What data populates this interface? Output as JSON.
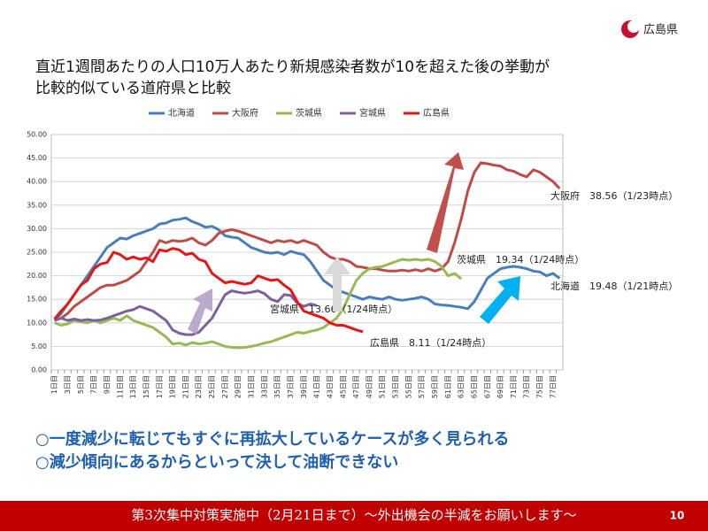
{
  "logo": "広島県",
  "title_lines": [
    "直近1週間あたりの人口10万人あたり新規感染者数が10を超えた後の挙動が",
    "比較的似ている道府県と比較"
  ],
  "bullets": [
    "○一度減少に転じてもすぐに再拡大しているケースが多く見られる",
    "○減少傾向にあるからといって決して油断できない"
  ],
  "footer": "第3次集中対策実施中（2月21日まで）～外出機会の半減をお願いします～",
  "page_number": "10",
  "chart_data": {
    "type": "line",
    "categories": [
      "1日目",
      null,
      "3日目",
      null,
      "5日目",
      null,
      "7日目",
      null,
      "9日目",
      null,
      "11日目",
      null,
      "13日目",
      null,
      "15日目",
      null,
      "17日目",
      null,
      "19日目",
      null,
      "21日目",
      null,
      "23日目",
      null,
      "25日目",
      null,
      "27日目",
      null,
      "29日目",
      null,
      "31日目",
      null,
      "33日目",
      null,
      "35日目",
      null,
      "37日目",
      null,
      "39日目",
      null,
      "41日目",
      null,
      "43日目",
      null,
      "45日目",
      null,
      "47日目",
      null,
      "49日目",
      null,
      "51日目",
      null,
      "53日目",
      null,
      "55日目",
      null,
      "57日目",
      null,
      "59日目",
      null,
      "61日目",
      null,
      "63日目",
      null,
      "65日目",
      null,
      "67日目",
      null,
      "69日目",
      null,
      "71日目",
      null,
      "73日目",
      null,
      "75日目",
      null,
      "77日目",
      null
    ],
    "ylim": [
      0,
      50
    ],
    "yticks": [
      {
        "value": 0,
        "label": "0.00"
      },
      {
        "value": 5,
        "label": "5.00"
      },
      {
        "value": 10,
        "label": "10.00"
      },
      {
        "value": 15,
        "label": "15.00"
      },
      {
        "value": 20,
        "label": "20.00"
      },
      {
        "value": 25,
        "label": "25.00"
      },
      {
        "value": 30,
        "label": "30.00"
      },
      {
        "value": 35,
        "label": "35.00"
      },
      {
        "value": 40,
        "label": "40.00"
      },
      {
        "value": 45,
        "label": "45.00"
      },
      {
        "value": 50,
        "label": "50.00"
      }
    ],
    "grid": true,
    "series": [
      {
        "name": "北海道",
        "color": "#4a7ebb",
        "values": [
          10.5,
          12,
          14,
          16,
          18,
          20,
          22,
          24,
          26,
          27,
          28,
          27.8,
          28.5,
          29,
          29.5,
          30,
          31,
          31.2,
          31.8,
          32,
          32.3,
          31.5,
          31,
          30.3,
          30.5,
          29.8,
          28.5,
          28.2,
          28,
          27,
          26,
          25.5,
          25,
          24.8,
          25,
          24.5,
          25.2,
          24.8,
          24.5,
          23,
          21,
          19,
          18,
          17,
          16.5,
          16,
          15.5,
          15,
          15.5,
          15.2,
          15,
          15.5,
          15,
          14.8,
          15,
          15.2,
          15.5,
          15,
          14,
          13.8,
          13.7,
          13.5,
          13.3,
          13,
          14.5,
          17,
          19.5,
          20.5,
          21.5,
          21.8,
          22,
          21.8,
          21.5,
          21,
          20.8,
          20,
          20.5,
          19.48
        ]
      },
      {
        "name": "大阪府",
        "color": "#be4b48",
        "values": [
          10.5,
          11,
          12,
          13.5,
          14.5,
          15.5,
          16.5,
          17.5,
          18,
          18,
          18.5,
          19,
          20,
          21,
          23,
          25,
          27.5,
          27,
          27.5,
          27.3,
          27.5,
          28,
          27,
          26.5,
          27.5,
          29,
          29.5,
          29.8,
          29.5,
          29,
          28.5,
          28,
          27.5,
          27,
          27.5,
          27.2,
          27.5,
          27,
          27.5,
          27,
          26.5,
          25,
          24,
          23.5,
          23.5,
          23,
          22,
          21.8,
          21.5,
          21.5,
          21.2,
          21,
          21,
          21.2,
          21,
          21.3,
          21,
          21.5,
          21,
          21.5,
          23,
          27,
          32,
          38,
          42,
          44,
          43.8,
          43.5,
          43.3,
          42.5,
          42.2,
          41.5,
          41,
          42.5,
          42,
          41,
          40,
          38.56
        ]
      },
      {
        "name": "茨城県",
        "color": "#98b954",
        "values": [
          10,
          9.5,
          9.8,
          10.5,
          10.2,
          10,
          10.5,
          10,
          10.5,
          11,
          10.5,
          11.5,
          10.5,
          10,
          9.5,
          9,
          8,
          7,
          5.5,
          5.7,
          5.3,
          5.8,
          5.5,
          5.7,
          6,
          5.5,
          5,
          4.8,
          4.7,
          4.8,
          5,
          5.3,
          5.7,
          6,
          6.5,
          7,
          7.5,
          8,
          7.8,
          8.2,
          8.5,
          9,
          10,
          11,
          13,
          16,
          19,
          20.5,
          21.5,
          21.8,
          22,
          22.5,
          23,
          23.5,
          23.3,
          23.5,
          23.3,
          23.5,
          23,
          22,
          20,
          20.5,
          19.34,
          null,
          null,
          null,
          null,
          null,
          null,
          null,
          null,
          null,
          null,
          null,
          null,
          null,
          null,
          null
        ]
      },
      {
        "name": "宮城県",
        "color": "#7d60a0",
        "values": [
          10.5,
          11,
          10.5,
          10.8,
          10.5,
          10.7,
          10.5,
          10.6,
          11,
          11.5,
          12,
          12.5,
          12.8,
          13.5,
          13,
          12.5,
          11.5,
          10.5,
          8.5,
          7.8,
          7.5,
          7.5,
          8,
          9.5,
          11,
          13.5,
          16,
          16.8,
          16.5,
          16.3,
          16.5,
          16.8,
          16.2,
          15,
          14.5,
          16,
          15.8,
          14.2,
          13.5,
          14,
          13.66,
          null,
          null,
          null,
          null,
          null,
          null,
          null,
          null,
          null,
          null,
          null,
          null,
          null,
          null,
          null,
          null,
          null,
          null,
          null,
          null,
          null,
          null,
          null,
          null,
          null,
          null,
          null,
          null,
          null,
          null,
          null,
          null,
          null,
          null,
          null,
          null,
          null
        ]
      },
      {
        "name": "広島県",
        "color": "#e3171a",
        "values": [
          10.8,
          12.5,
          14,
          16,
          18,
          19,
          21.5,
          22.5,
          22.8,
          25,
          24.5,
          23.5,
          24,
          23.5,
          23.8,
          23,
          25.5,
          25.2,
          25.8,
          25.5,
          24.5,
          24.8,
          23.5,
          23,
          20.5,
          19.5,
          18.5,
          18.8,
          18.5,
          18.2,
          18.5,
          20,
          19.5,
          19,
          19.2,
          18,
          17,
          14.5,
          12.5,
          12,
          11.5,
          11,
          10,
          9.5,
          9.5,
          9,
          8.5,
          8.11,
          null,
          null,
          null,
          null,
          null,
          null,
          null,
          null,
          null,
          null,
          null,
          null,
          null,
          null,
          null,
          null,
          null,
          null,
          null,
          null,
          null,
          null,
          null,
          null,
          null,
          null,
          null,
          null,
          null,
          null
        ]
      }
    ],
    "annotations": [
      "大阪府　38.56（1/23時点）",
      "茨城県　19.34（1/24時点）",
      "北海道　19.48（1/21時点）",
      "宮城県　13.66（1/24時点）",
      "広島県　8.11（1/24時点）"
    ]
  }
}
